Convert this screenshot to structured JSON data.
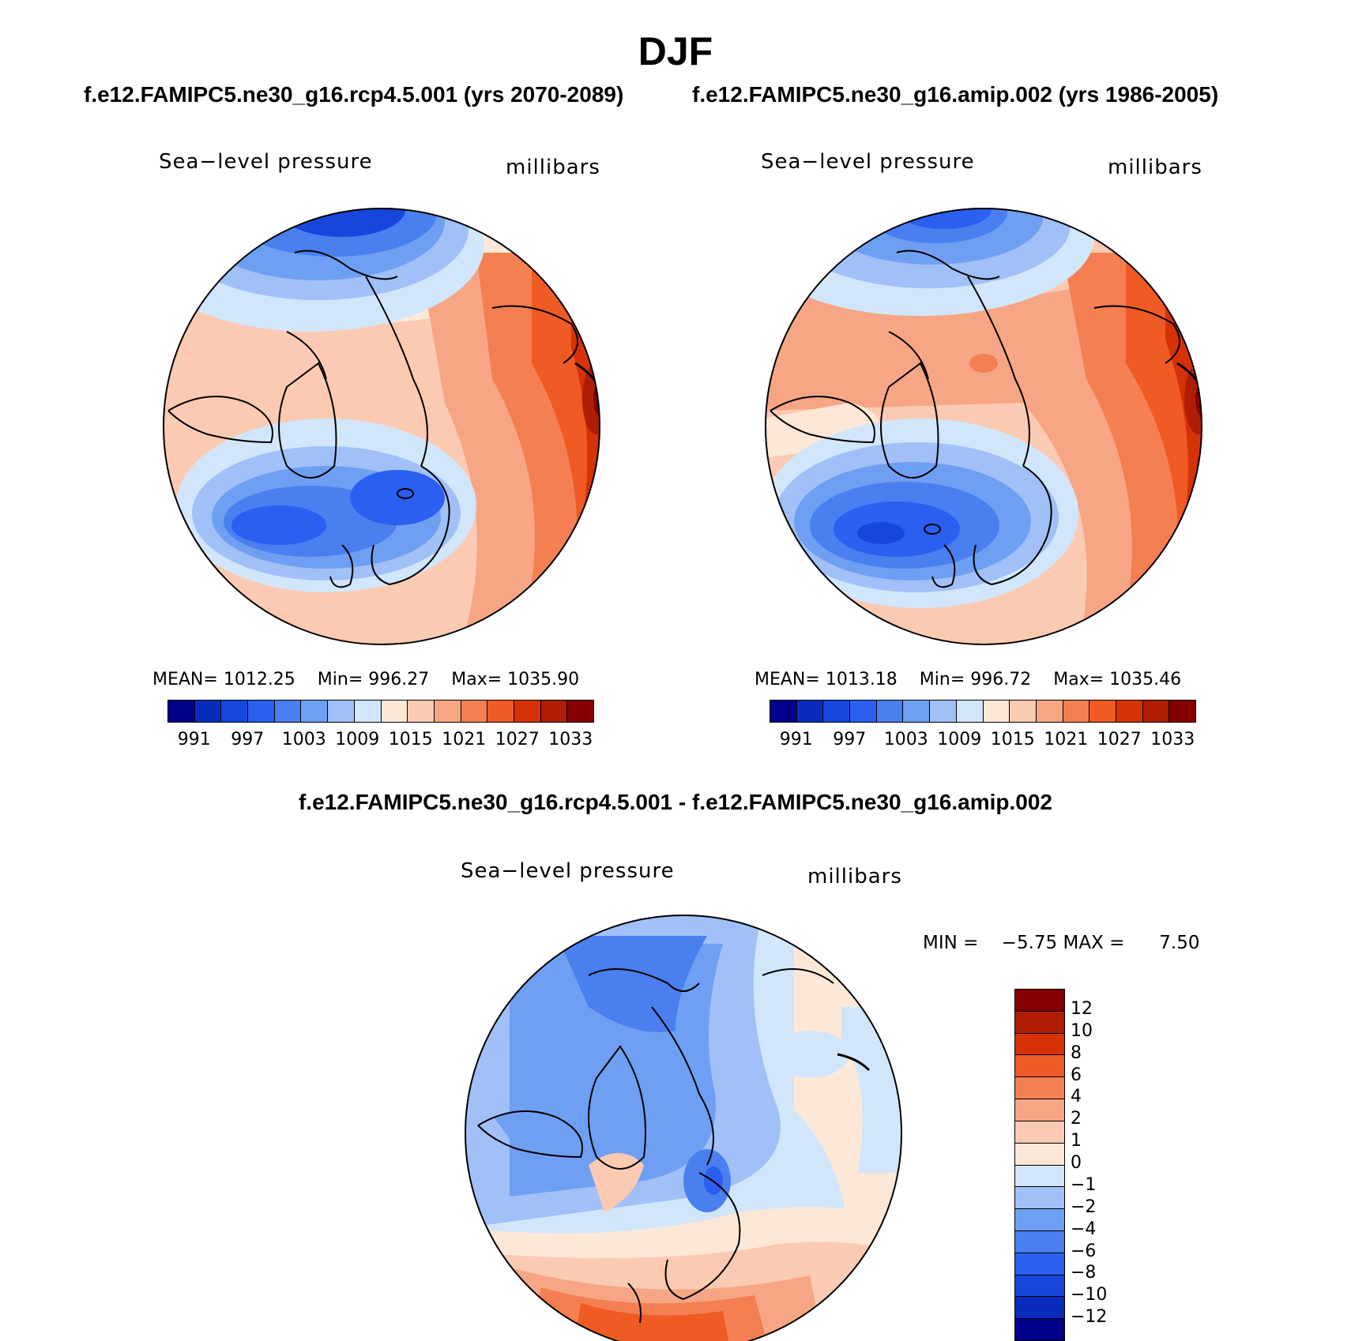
{
  "title": "DJF",
  "panels": {
    "left": {
      "case": "f.e12.FAMIPC5.ne30_g16.rcp4.5.001 (yrs 2070-2089)",
      "variable": "Sea−level pressure",
      "units": "millibars",
      "mean_label": "MEAN=",
      "mean_value": "1012.25",
      "min_label": "Min=",
      "min_value": "996.27",
      "max_label": "Max=",
      "max_value": "1035.90"
    },
    "right": {
      "case": "f.e12.FAMIPC5.ne30_g16.amip.002 (yrs 1986-2005)",
      "variable": "Sea−level pressure",
      "units": "millibars",
      "mean_label": "MEAN=",
      "mean_value": "1013.18",
      "min_label": "Min=",
      "min_value": "996.72",
      "max_label": "Max=",
      "max_value": "1035.46"
    },
    "diff": {
      "title": "f.e12.FAMIPC5.ne30_g16.rcp4.5.001 - f.e12.FAMIPC5.ne30_g16.amip.002",
      "variable": "Sea−level pressure",
      "units": "millibars",
      "min_label": "MIN =",
      "min_value": "−5.75",
      "max_label": "MAX =",
      "max_value": "7.50"
    }
  },
  "colorbars": {
    "abs_colors": [
      "#00008b",
      "#0a2cbd",
      "#1646dc",
      "#2a5ff0",
      "#4a7ff0",
      "#6f9ff2",
      "#a0c0f7",
      "#d2e6fb",
      "#fde8d8",
      "#fbcab2",
      "#f6a685",
      "#f47f52",
      "#f05a25",
      "#d63208",
      "#b01d05",
      "#850000"
    ],
    "abs_ticks": [
      "991",
      "997",
      "1003",
      "1009",
      "1015",
      "1021",
      "1027",
      "1033"
    ],
    "diff_colors_top_to_bottom": [
      "#850000",
      "#b01d05",
      "#d63208",
      "#f05a25",
      "#f47f52",
      "#f6a685",
      "#fbcab2",
      "#fde8d8",
      "#d2e6fb",
      "#a0c0f7",
      "#6f9ff2",
      "#4a7ff0",
      "#2a5ff0",
      "#1646dc",
      "#0a2cbd",
      "#00008b"
    ],
    "diff_ticks_top_to_bottom": [
      "12",
      "10",
      "8",
      "6",
      "4",
      "2",
      "1",
      "0",
      "−1",
      "−2",
      "−4",
      "−6",
      "−8",
      "−10",
      "−12"
    ]
  }
}
